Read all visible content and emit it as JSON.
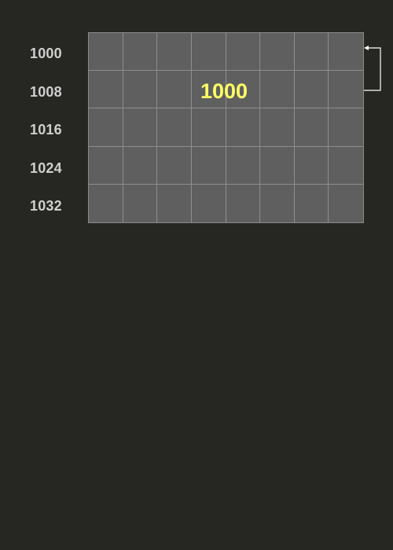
{
  "addresses": [
    "1000",
    "1008",
    "1016",
    "1024",
    "1032"
  ],
  "stored_value": "1000",
  "colors": {
    "background": "#262622",
    "cell_fill": "#5f5f5f",
    "grid_line": "#8e8e8e",
    "address_text": "#cfcfcf",
    "value_text": "#ffff66",
    "arrow": "#ffffff"
  }
}
